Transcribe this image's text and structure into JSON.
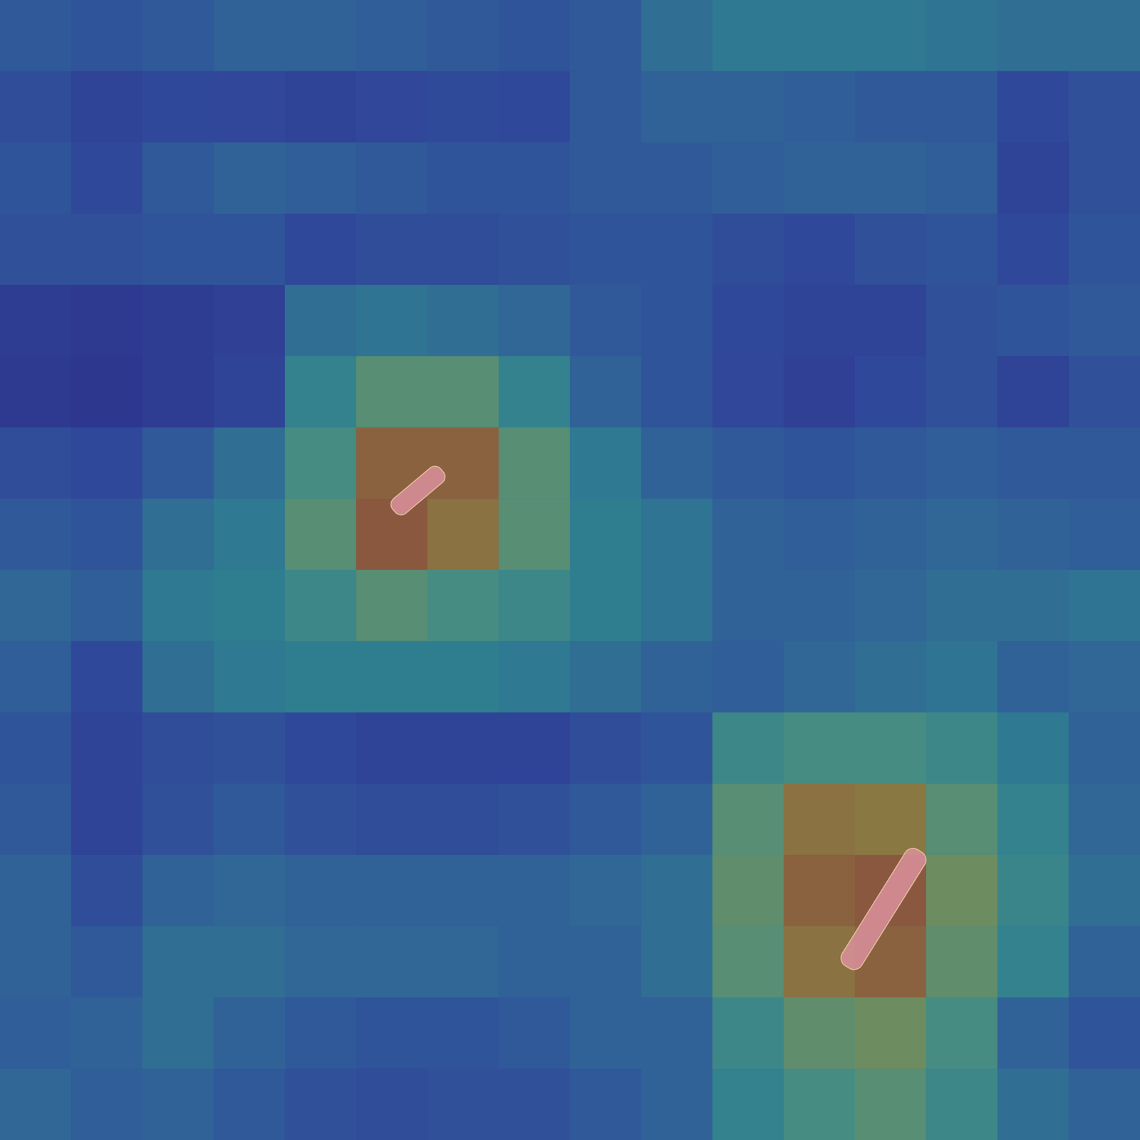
{
  "chart_data": {
    "type": "heatmap",
    "tick_labels": false,
    "color_range": [
      0,
      1
    ],
    "values": [
      [
        0.25,
        0.22,
        0.25,
        0.3,
        0.3,
        0.28,
        0.25,
        0.22,
        0.25,
        0.35,
        0.4,
        0.4,
        0.4,
        0.38,
        0.35,
        0.35
      ],
      [
        0.18,
        0.12,
        0.15,
        0.14,
        0.12,
        0.14,
        0.16,
        0.15,
        0.25,
        0.3,
        0.3,
        0.28,
        0.25,
        0.25,
        0.15,
        0.2
      ],
      [
        0.22,
        0.15,
        0.25,
        0.3,
        0.28,
        0.25,
        0.22,
        0.22,
        0.25,
        0.25,
        0.28,
        0.3,
        0.3,
        0.28,
        0.12,
        0.2
      ],
      [
        0.2,
        0.2,
        0.22,
        0.22,
        0.15,
        0.18,
        0.18,
        0.2,
        0.22,
        0.22,
        0.18,
        0.15,
        0.2,
        0.22,
        0.15,
        0.22
      ],
      [
        0.08,
        0.06,
        0.08,
        0.1,
        0.35,
        0.38,
        0.35,
        0.32,
        0.25,
        0.22,
        0.15,
        0.12,
        0.12,
        0.2,
        0.22,
        0.25
      ],
      [
        0.06,
        0.05,
        0.08,
        0.12,
        0.45,
        0.6,
        0.6,
        0.45,
        0.3,
        0.22,
        0.14,
        0.1,
        0.15,
        0.2,
        0.12,
        0.2
      ],
      [
        0.18,
        0.15,
        0.25,
        0.35,
        0.55,
        0.85,
        0.85,
        0.6,
        0.4,
        0.3,
        0.25,
        0.22,
        0.25,
        0.28,
        0.25,
        0.25
      ],
      [
        0.25,
        0.22,
        0.35,
        0.4,
        0.6,
        0.88,
        0.8,
        0.6,
        0.42,
        0.38,
        0.3,
        0.28,
        0.3,
        0.32,
        0.3,
        0.28
      ],
      [
        0.32,
        0.28,
        0.4,
        0.42,
        0.5,
        0.6,
        0.55,
        0.5,
        0.42,
        0.38,
        0.3,
        0.3,
        0.32,
        0.35,
        0.35,
        0.38
      ],
      [
        0.28,
        0.15,
        0.35,
        0.4,
        0.42,
        0.42,
        0.42,
        0.4,
        0.35,
        0.3,
        0.28,
        0.32,
        0.35,
        0.38,
        0.3,
        0.32
      ],
      [
        0.22,
        0.12,
        0.18,
        0.2,
        0.15,
        0.12,
        0.12,
        0.12,
        0.18,
        0.22,
        0.5,
        0.55,
        0.55,
        0.5,
        0.4,
        0.3
      ],
      [
        0.25,
        0.12,
        0.2,
        0.25,
        0.2,
        0.18,
        0.18,
        0.2,
        0.25,
        0.3,
        0.6,
        0.8,
        0.78,
        0.6,
        0.45,
        0.32
      ],
      [
        0.3,
        0.18,
        0.3,
        0.32,
        0.3,
        0.3,
        0.3,
        0.3,
        0.32,
        0.35,
        0.62,
        0.85,
        0.88,
        0.65,
        0.48,
        0.35
      ],
      [
        0.3,
        0.25,
        0.35,
        0.35,
        0.32,
        0.32,
        0.32,
        0.3,
        0.3,
        0.35,
        0.6,
        0.8,
        0.85,
        0.62,
        0.45,
        0.3
      ],
      [
        0.28,
        0.3,
        0.35,
        0.3,
        0.25,
        0.22,
        0.22,
        0.25,
        0.3,
        0.3,
        0.5,
        0.62,
        0.65,
        0.55,
        0.3,
        0.22
      ],
      [
        0.32,
        0.28,
        0.3,
        0.25,
        0.2,
        0.18,
        0.2,
        0.2,
        0.25,
        0.3,
        0.45,
        0.55,
        0.6,
        0.5,
        0.35,
        0.3
      ]
    ]
  }
}
